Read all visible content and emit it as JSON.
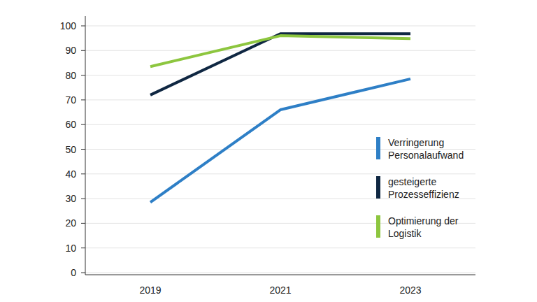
{
  "chart_data": {
    "type": "line",
    "categories": [
      "2019",
      "2021",
      "2023"
    ],
    "series": [
      {
        "name": "Verringerung Personalaufwand",
        "color": "#2e7fc6",
        "values": [
          28.5,
          66,
          78.5
        ]
      },
      {
        "name": "gesteigerte Prozesseffizienz",
        "color": "#0f2742",
        "values": [
          72,
          96.8,
          96.8
        ]
      },
      {
        "name": "Optimierung der Logistik",
        "color": "#8dc63f",
        "values": [
          83.5,
          96,
          94.8
        ]
      }
    ],
    "ylim": [
      0,
      100
    ],
    "yticks": [
      0,
      10,
      20,
      30,
      40,
      50,
      60,
      70,
      80,
      90,
      100
    ],
    "grid": true,
    "legend": "right"
  }
}
